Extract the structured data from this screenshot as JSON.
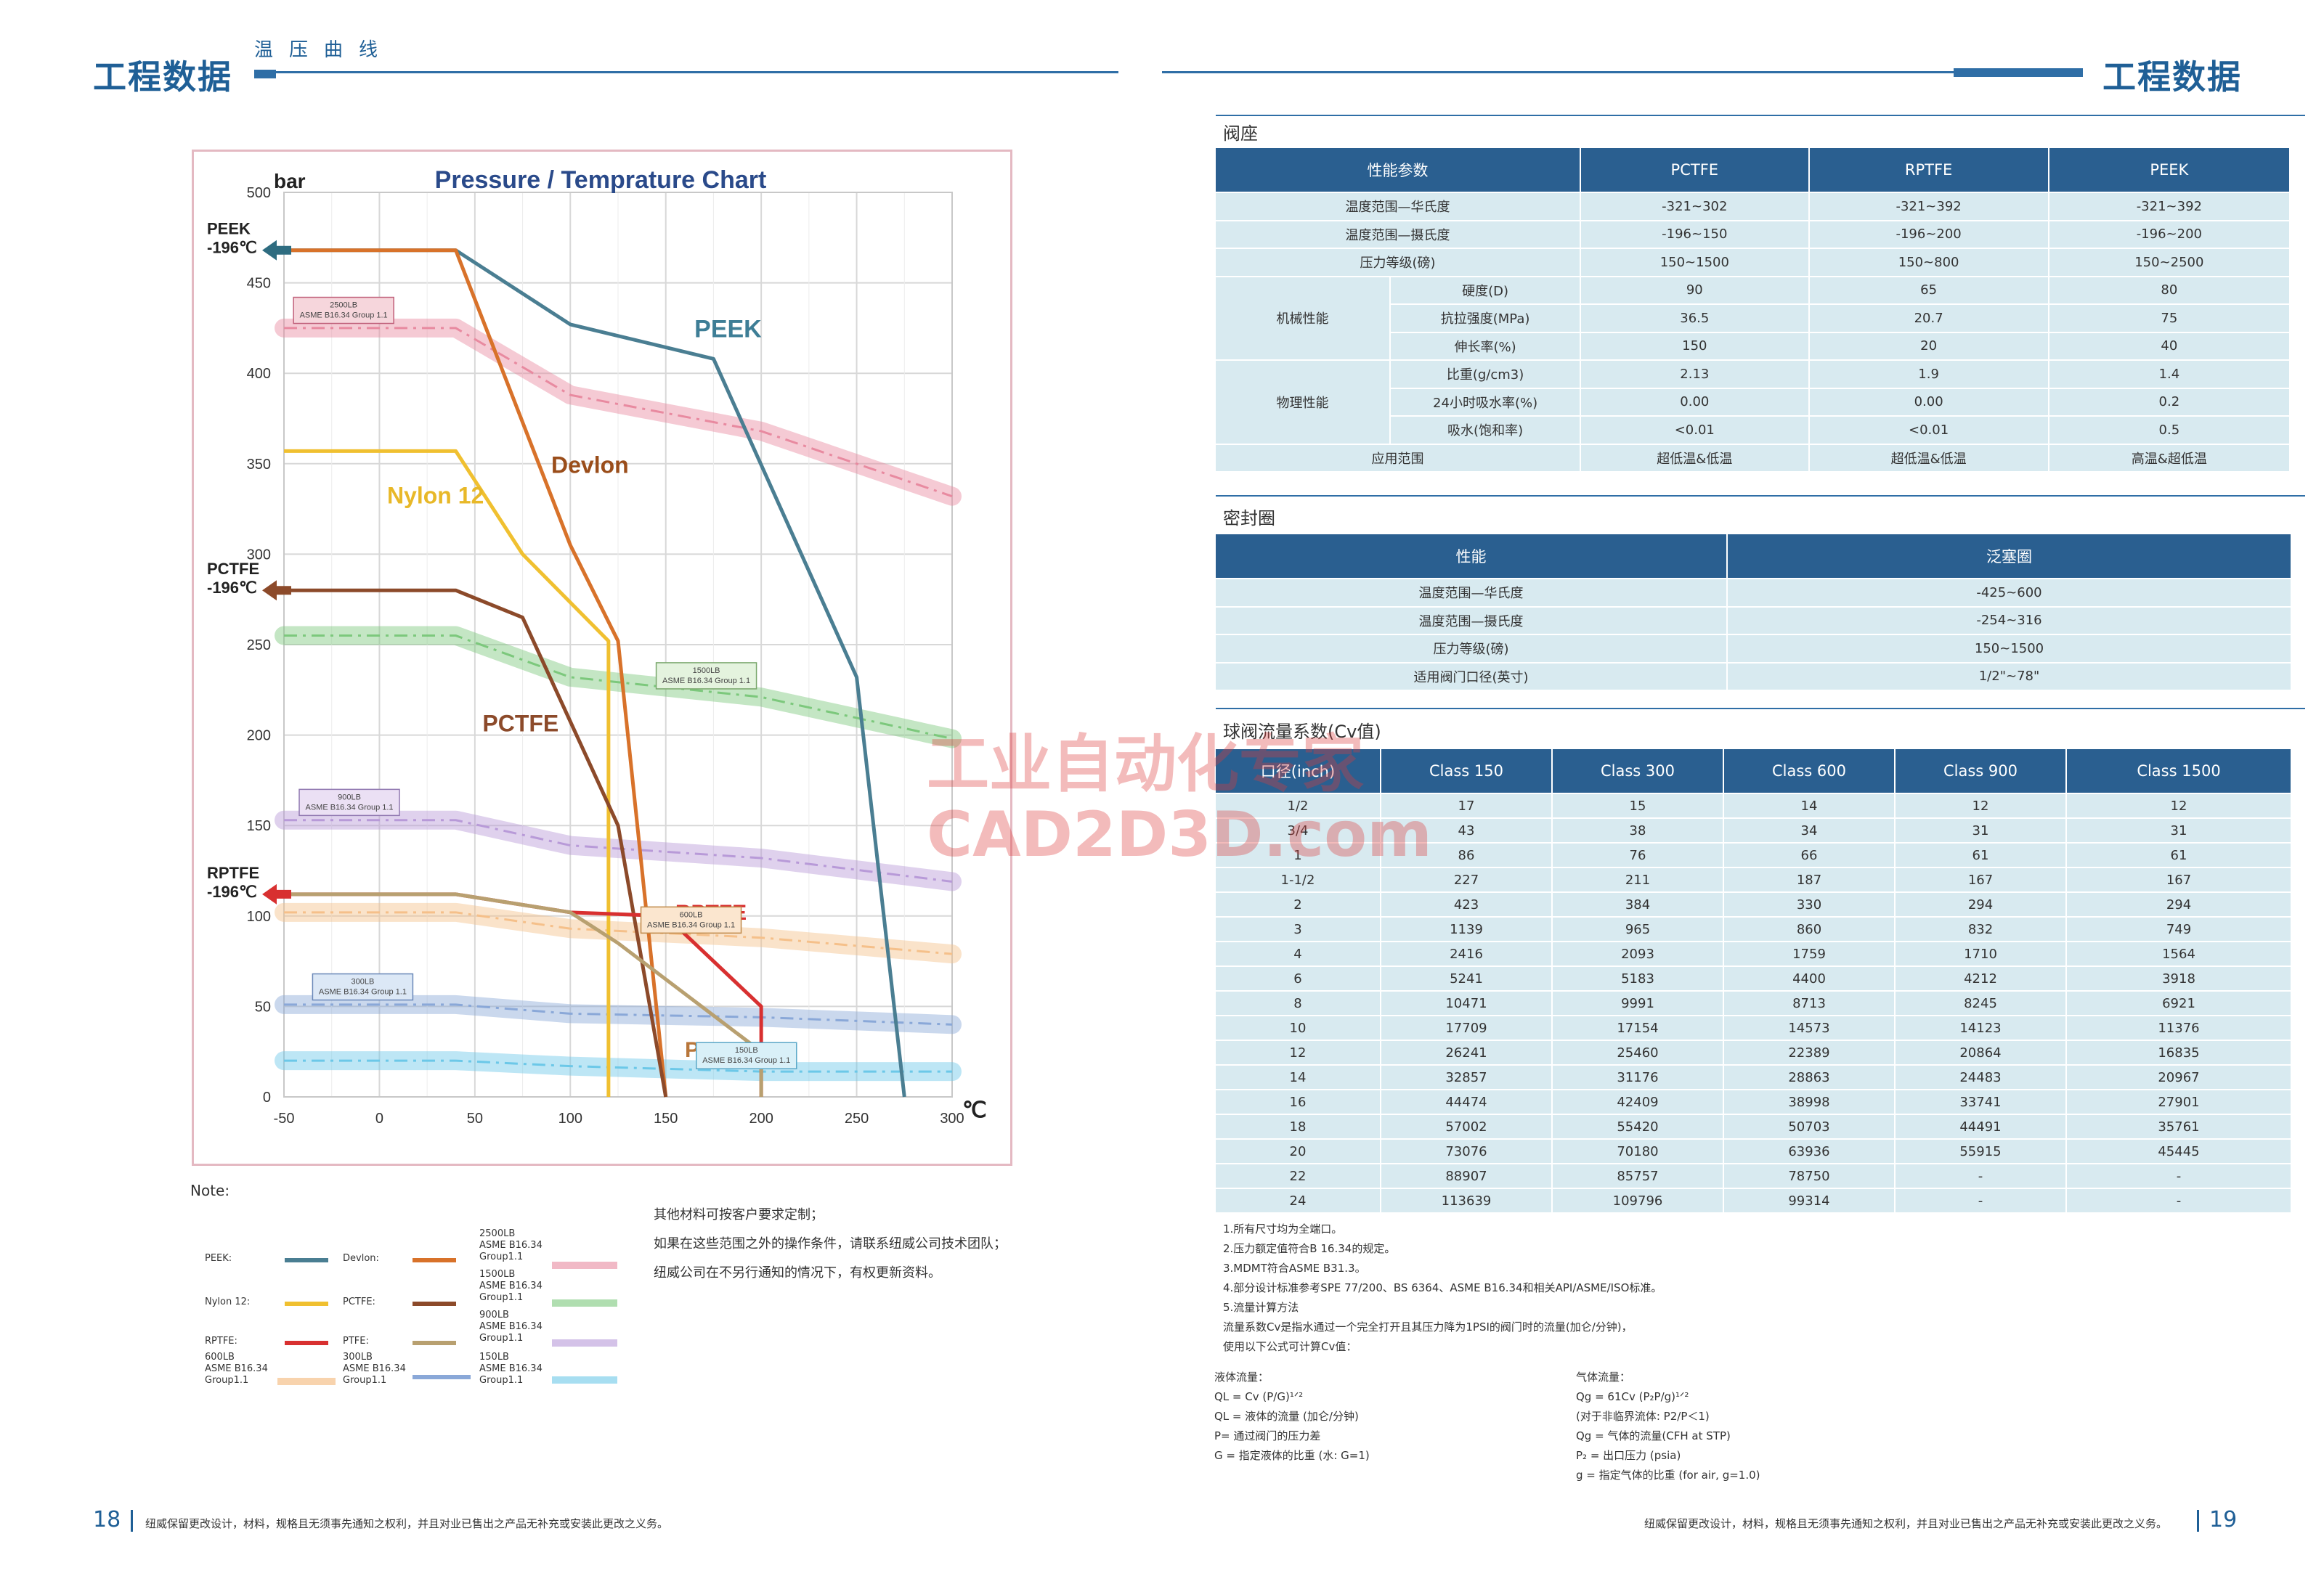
{
  "left": {
    "title": "工程数据",
    "subtitle": "温压曲线",
    "page_number": "18",
    "footer": "纽威保留更改设计，材料，规格且无须事先通知之权利，并且对业已售出之产品无补充或安装此更改之义务。",
    "note_label": "Note:",
    "side_notes": [
      "其他材料可按客户要求定制；",
      "如果在这些范围之外的操作条件，请联系纽威公司技术团队；",
      "纽威公司在不另行通知的情况下，有权更新资料。"
    ],
    "legend": {
      "peek": "PEEK:",
      "devlon": "Devlon:",
      "nylon": "Nylon 12:",
      "pctfe": "PCTFE:",
      "rptfe": "RPTFE:",
      "ptfe": "PTFE:",
      "cls2500": "2500LB\nASME B16.34\nGroup1.1",
      "cls1500": "1500LB\nASME B16.34\nGroup1.1",
      "cls900": "900LB\nASME B16.34\nGroup1.1",
      "cls600": "600LB\nASME B16.34\nGroup1.1",
      "cls300": "300LB\nASME B16.34\nGroup1.1",
      "cls150": "150LB\nASME B16.34\nGroup1.1"
    }
  },
  "chart_data": {
    "type": "line",
    "title": "Pressure / Temprature Chart",
    "ylabel": "bar",
    "xlabel": "℃",
    "xlim": [
      -50,
      300
    ],
    "ylim": [
      0,
      500
    ],
    "x_ticks": [
      -50,
      0,
      50,
      100,
      150,
      200,
      250,
      300
    ],
    "y_ticks": [
      0,
      50,
      100,
      150,
      200,
      250,
      300,
      350,
      400,
      450,
      500
    ],
    "grid": true,
    "series": [
      {
        "name": "PEEK",
        "color": "#4a7e92",
        "points": [
          [
            -50,
            468
          ],
          [
            40,
            468
          ],
          [
            100,
            427
          ],
          [
            175,
            408
          ],
          [
            250,
            232
          ],
          [
            275,
            0
          ]
        ]
      },
      {
        "name": "Devlon",
        "color": "#d8722a",
        "points": [
          [
            -50,
            468
          ],
          [
            40,
            468
          ],
          [
            100,
            305
          ],
          [
            125,
            252
          ],
          [
            150,
            0
          ]
        ]
      },
      {
        "name": "Nylon 12",
        "color": "#f0c030",
        "points": [
          [
            -50,
            357
          ],
          [
            40,
            357
          ],
          [
            75,
            300
          ],
          [
            120,
            252
          ],
          [
            120,
            0
          ]
        ]
      },
      {
        "name": "PCTFE",
        "color": "#8c4a2a",
        "points": [
          [
            -50,
            280
          ],
          [
            40,
            280
          ],
          [
            75,
            265
          ],
          [
            125,
            150
          ],
          [
            150,
            0
          ]
        ]
      },
      {
        "name": "RPTFE",
        "color": "#d83030",
        "points": [
          [
            -50,
            112
          ],
          [
            40,
            112
          ],
          [
            100,
            102
          ],
          [
            150,
            100
          ],
          [
            200,
            50
          ],
          [
            200,
            0
          ]
        ]
      },
      {
        "name": "PTFE",
        "color": "#b8a070",
        "points": [
          [
            -50,
            112
          ],
          [
            40,
            112
          ],
          [
            100,
            102
          ],
          [
            125,
            85
          ],
          [
            200,
            25
          ],
          [
            200,
            0
          ]
        ]
      }
    ],
    "class_bands": [
      {
        "name": "2500LB",
        "color": "#e88aa0",
        "points": [
          [
            -50,
            425
          ],
          [
            40,
            425
          ],
          [
            100,
            388
          ],
          [
            200,
            368
          ],
          [
            300,
            332
          ]
        ]
      },
      {
        "name": "1500LB",
        "color": "#7cc87c",
        "points": [
          [
            -50,
            255
          ],
          [
            40,
            255
          ],
          [
            100,
            232
          ],
          [
            200,
            221
          ],
          [
            300,
            198
          ]
        ]
      },
      {
        "name": "900LB",
        "color": "#b89ad8",
        "points": [
          [
            -50,
            153
          ],
          [
            40,
            153
          ],
          [
            100,
            139
          ],
          [
            200,
            132
          ],
          [
            300,
            119
          ]
        ]
      },
      {
        "name": "600LB",
        "color": "#f5c08a",
        "points": [
          [
            -50,
            102
          ],
          [
            40,
            102
          ],
          [
            100,
            93
          ],
          [
            200,
            88
          ],
          [
            300,
            79
          ]
        ]
      },
      {
        "name": "300LB",
        "color": "#8aa8d8",
        "points": [
          [
            -50,
            51
          ],
          [
            40,
            51
          ],
          [
            100,
            46
          ],
          [
            200,
            44
          ],
          [
            300,
            40
          ]
        ]
      },
      {
        "name": "150LB",
        "color": "#6cc8e8",
        "points": [
          [
            -50,
            20
          ],
          [
            40,
            20
          ],
          [
            100,
            17
          ],
          [
            200,
            14
          ],
          [
            300,
            14
          ]
        ]
      }
    ],
    "annotations": {
      "peek_arrow": "PEEK\n-196℃",
      "pctfe_arrow": "PCTFE\n-196℃",
      "rptfe_arrow": "RPTFE\n-196℃",
      "label_peek": "PEEK",
      "label_devlon": "Devlon",
      "label_nylon": "Nylon 12",
      "label_pctfe": "PCTFE",
      "label_rptfe": "RPTFE",
      "label_ptfe": "PTFE",
      "tag_2500": "2500LB\nASME B16.34 Group 1.1",
      "tag_1500": "1500LB\nASME B16.34 Group 1.1",
      "tag_900": "900LB\nASME B16.34 Group 1.1",
      "tag_600": "600LB\nASME B16.34 Group 1.1",
      "tag_300": "300LB\nASME B16.34 Group 1.1",
      "tag_150": "150LB\nASME B16.34 Group 1.1"
    }
  },
  "right": {
    "title": "工程数据",
    "page_number": "19",
    "footer": "纽威保留更改设计，材料，规格且无须事先通知之权利，并且对业已售出之产品无补充或安装此更改之义务。",
    "seat": {
      "section": "阀座",
      "headers": [
        "性能参数",
        "PCTFE",
        "RPTFE",
        "PEEK"
      ],
      "rows_top": [
        [
          "温度范围—华氏度",
          "-321~302",
          "-321~392",
          "-321~392"
        ],
        [
          "温度范围—摄氏度",
          "-196~150",
          "-196~200",
          "-196~200"
        ],
        [
          "压力等级(磅)",
          "150~1500",
          "150~800",
          "150~2500"
        ]
      ],
      "mech_label": "机械性能",
      "mech_rows": [
        [
          "硬度(D)",
          "90",
          "65",
          "80"
        ],
        [
          "抗拉强度(MPa)",
          "36.5",
          "20.7",
          "75"
        ],
        [
          "伸长率(%)",
          "150",
          "20",
          "40"
        ]
      ],
      "phys_label": "物理性能",
      "phys_rows": [
        [
          "比重(g/cm3)",
          "2.13",
          "1.9",
          "1.4"
        ],
        [
          "24小时吸水率(%)",
          "0.00",
          "0.00",
          "0.2"
        ],
        [
          "吸水(饱和率)",
          "<0.01",
          "<0.01",
          "0.5"
        ]
      ],
      "app_row": [
        "应用范围",
        "超低温&低温",
        "超低温&低温",
        "高温&超低温"
      ]
    },
    "seal": {
      "section": "密封圈",
      "headers": [
        "性能",
        "泛塞圈"
      ],
      "rows": [
        [
          "温度范围—华氏度",
          "-425~600"
        ],
        [
          "温度范围—摄氏度",
          "-254~316"
        ],
        [
          "压力等级(磅)",
          "150~1500"
        ],
        [
          "适用阀门口径(英寸)",
          "1/2\"~78\""
        ]
      ]
    },
    "cv": {
      "section": "球阀流量系数(Cv值)",
      "headers": [
        "口径(inch)",
        "Class 150",
        "Class 300",
        "Class 600",
        "Class 900",
        "Class 1500"
      ],
      "rows": [
        [
          "1/2",
          "17",
          "15",
          "14",
          "12",
          "12"
        ],
        [
          "3/4",
          "43",
          "38",
          "34",
          "31",
          "31"
        ],
        [
          "1",
          "86",
          "76",
          "66",
          "61",
          "61"
        ],
        [
          "1-1/2",
          "227",
          "211",
          "187",
          "167",
          "167"
        ],
        [
          "2",
          "423",
          "384",
          "330",
          "294",
          "294"
        ],
        [
          "3",
          "1139",
          "965",
          "860",
          "832",
          "749"
        ],
        [
          "4",
          "2416",
          "2093",
          "1759",
          "1710",
          "1564"
        ],
        [
          "6",
          "5241",
          "5183",
          "4400",
          "4212",
          "3918"
        ],
        [
          "8",
          "10471",
          "9991",
          "8713",
          "8245",
          "6921"
        ],
        [
          "10",
          "17709",
          "17154",
          "14573",
          "14123",
          "11376"
        ],
        [
          "12",
          "26241",
          "25460",
          "22389",
          "20864",
          "16835"
        ],
        [
          "14",
          "32857",
          "31176",
          "28863",
          "24483",
          "20967"
        ],
        [
          "16",
          "44474",
          "42409",
          "38998",
          "33741",
          "27901"
        ],
        [
          "18",
          "57002",
          "55420",
          "50703",
          "44491",
          "35761"
        ],
        [
          "20",
          "73076",
          "70180",
          "63936",
          "55915",
          "45445"
        ],
        [
          "22",
          "88907",
          "85757",
          "78750",
          "-",
          "-"
        ],
        [
          "24",
          "113639",
          "109796",
          "99314",
          "-",
          "-"
        ]
      ]
    },
    "notes": [
      "1.所有尺寸均为全端口。",
      "2.压力额定值符合B 16.34的规定。",
      "3.MDMT符合ASME B31.3。",
      "4.部分设计标准参考SPE 77/200、BS 6364、ASME B16.34和相关API/ASME/ISO标准。",
      "5.流量计算方法",
      "流量系数Cv是指水通过一个完全打开且其压力降为1PSI的阀门时的流量(加仑/分钟)，",
      "使用以下公式可计算Cv值："
    ],
    "liquid": [
      "液体流量：",
      "QL = Cv (P/G)¹ᐟ²",
      "QL = 液体的流量 (加仑/分钟)",
      "P= 通过阀门的压力差",
      "G = 指定液体的比重 (水: G=1)"
    ],
    "gas": [
      "气体流量：",
      "Qg = 61Cv (P₂P/g)¹ᐟ²",
      "(对于非临界流体: P2/P＜1)",
      "Qg = 气体的流量(CFH at STP)",
      "P₂ = 出口压力 (psia)",
      "g = 指定气体的比重 (for air, g=1.0)"
    ]
  },
  "watermark": {
    "line1": "工业自动化专家",
    "line2": "CAD2D3D.com"
  }
}
